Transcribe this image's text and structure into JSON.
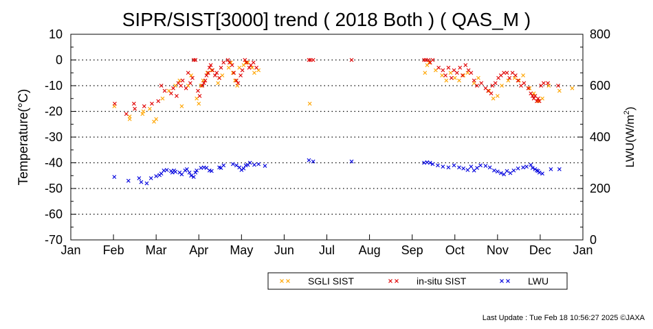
{
  "chart_data": {
    "type": "scatter",
    "title": "SIPR/SIST[3000] trend ( 2018 Both ) ( QAS_M )",
    "ylabel": "Temperature(°C)",
    "y2label_main": "LWU(W/m",
    "y2label_sup": "2",
    "y2label_end": ")",
    "ylim": [
      -70,
      10
    ],
    "y2lim": [
      0,
      800
    ],
    "xlim": [
      0,
      12
    ],
    "yticks": [
      10,
      0,
      -10,
      -20,
      -30,
      -40,
      -50,
      -60,
      -70
    ],
    "y2ticks": [
      800,
      600,
      400,
      200,
      0
    ],
    "xticks": [
      "Jan",
      "Feb",
      "Mar",
      "Apr",
      "May",
      "Jun",
      "Jul",
      "Aug",
      "Sep",
      "Oct",
      "Nov",
      "Dec",
      "Jan"
    ],
    "grid": "horizontal dotted",
    "legend_position": "bottom-right",
    "series": [
      {
        "name": "SGLI SIST",
        "color": "#ffa500",
        "axis": "left",
        "marker": "x",
        "x": [
          1.02,
          1.38,
          1.38,
          1.68,
          1.7,
          1.85,
          1.95,
          2.0,
          2.15,
          2.3,
          2.45,
          2.55,
          2.6,
          2.75,
          2.82,
          2.95,
          3.0,
          3.05,
          3.1,
          3.2,
          3.3,
          3.45,
          3.48,
          3.55,
          3.7,
          3.75,
          3.8,
          3.85,
          3.9,
          3.95,
          4.05,
          4.1,
          4.15,
          4.25,
          4.3,
          4.4,
          5.6,
          8.3,
          8.35,
          8.4,
          8.55,
          8.7,
          8.8,
          8.9,
          9.0,
          9.1,
          9.2,
          9.3,
          9.45,
          9.55,
          9.8,
          9.9,
          10.0,
          10.1,
          10.25,
          10.4,
          10.5,
          10.6,
          10.75,
          10.85,
          10.95,
          11.05,
          11.2,
          11.45,
          11.75
        ],
        "y": [
          -18,
          -23,
          -22,
          -21,
          -20,
          -19,
          -24,
          -23,
          -15,
          -12,
          -10,
          -8,
          -18,
          -10,
          -6,
          -15,
          -17,
          -10,
          -8,
          -5,
          -4,
          -9,
          -7,
          -6,
          -3,
          -1,
          -5,
          -8,
          -10,
          -3,
          -2,
          -1,
          -1,
          -3,
          -5,
          -4,
          -17,
          -5,
          -2,
          -1,
          -4,
          -6,
          -8,
          -5,
          -7,
          -8,
          -6,
          -5,
          -9,
          -7,
          -12,
          -15,
          -14,
          -10,
          -8,
          -7,
          -8,
          -6,
          -11,
          -13,
          -16,
          -15,
          -10,
          -12,
          -11
        ]
      },
      {
        "name": "in-situ SIST",
        "color": "#e00000",
        "axis": "left",
        "marker": "x",
        "x": [
          1.03,
          1.3,
          1.48,
          1.5,
          1.72,
          1.9,
          2.05,
          2.12,
          2.2,
          2.35,
          2.4,
          2.48,
          2.52,
          2.58,
          2.62,
          2.7,
          2.75,
          2.8,
          2.85,
          2.88,
          2.92,
          2.98,
          3.02,
          3.08,
          3.12,
          3.15,
          3.18,
          3.22,
          3.25,
          3.28,
          3.32,
          3.38,
          3.42,
          3.48,
          3.52,
          3.58,
          3.68,
          3.72,
          3.78,
          3.82,
          3.88,
          3.92,
          3.98,
          4.02,
          4.08,
          4.12,
          4.18,
          4.22,
          4.28,
          4.35,
          5.58,
          5.62,
          5.68,
          6.58,
          8.28,
          8.32,
          8.38,
          8.42,
          8.48,
          8.62,
          8.72,
          8.78,
          8.85,
          8.92,
          8.98,
          9.05,
          9.12,
          9.18,
          9.25,
          9.32,
          9.38,
          9.45,
          9.52,
          9.62,
          9.72,
          9.78,
          9.85,
          9.88,
          9.95,
          10.02,
          10.08,
          10.15,
          10.22,
          10.28,
          10.35,
          10.42,
          10.48,
          10.55,
          10.62,
          10.72,
          10.78,
          10.82,
          10.85,
          10.88,
          10.92,
          10.95,
          10.98,
          11.02,
          11.08,
          11.18,
          11.42
        ],
        "y": [
          -17,
          -21,
          -17,
          -19,
          -18,
          -17,
          -16,
          -10,
          -12,
          -13,
          -11,
          -14,
          -9,
          -10,
          -8,
          -11,
          -5,
          -9,
          -7,
          0,
          0,
          -12,
          -14,
          -10,
          -9,
          -8,
          -6,
          -5,
          -3,
          -2,
          -4,
          -6,
          -5,
          -7,
          -3,
          -1,
          0,
          -1,
          -2,
          -5,
          -8,
          -9,
          -6,
          -4,
          0,
          -1,
          -3,
          -2,
          -1,
          -3,
          0,
          0,
          0,
          0,
          0,
          0,
          0,
          -1,
          0,
          -3,
          -4,
          -6,
          -3,
          -7,
          -4,
          -5,
          -3,
          -6,
          -2,
          -4,
          -5,
          -8,
          -10,
          -9,
          -11,
          -12,
          -13,
          -10,
          -9,
          -7,
          -6,
          -5,
          -5,
          -7,
          -5,
          -6,
          -8,
          -10,
          -9,
          -11,
          -13,
          -14,
          -15,
          -14,
          -16,
          -15,
          -16,
          -10,
          -9,
          -9,
          -10
        ]
      },
      {
        "name": "LWU",
        "color": "#0000dd",
        "axis": "right",
        "marker": "x",
        "x": [
          1.02,
          1.35,
          1.6,
          1.65,
          1.78,
          1.88,
          2.0,
          2.08,
          2.12,
          2.18,
          2.25,
          2.35,
          2.38,
          2.42,
          2.45,
          2.55,
          2.6,
          2.68,
          2.72,
          2.78,
          2.82,
          2.88,
          2.92,
          2.95,
          3.05,
          3.12,
          3.18,
          3.25,
          3.3,
          3.48,
          3.52,
          3.58,
          3.8,
          3.88,
          3.95,
          4.0,
          4.05,
          4.1,
          4.15,
          4.2,
          4.3,
          4.4,
          4.55,
          5.58,
          5.68,
          6.58,
          8.28,
          8.35,
          8.42,
          8.48,
          8.6,
          8.72,
          8.85,
          8.98,
          9.1,
          9.2,
          9.3,
          9.38,
          9.45,
          9.52,
          9.6,
          9.72,
          9.82,
          9.92,
          10.0,
          10.08,
          10.15,
          10.22,
          10.3,
          10.38,
          10.48,
          10.6,
          10.68,
          10.78,
          10.82,
          10.88,
          10.92,
          10.95,
          10.98,
          11.05,
          11.25,
          11.45
        ],
        "y": [
          245,
          230,
          240,
          225,
          220,
          240,
          248,
          252,
          258,
          270,
          272,
          268,
          262,
          270,
          265,
          262,
          255,
          270,
          275,
          262,
          250,
          245,
          262,
          270,
          280,
          282,
          280,
          270,
          268,
          282,
          280,
          290,
          295,
          290,
          282,
          272,
          278,
          290,
          292,
          300,
          292,
          295,
          288,
          310,
          305,
          305,
          300,
          302,
          300,
          295,
          290,
          285,
          282,
          290,
          282,
          278,
          272,
          285,
          270,
          280,
          290,
          288,
          282,
          270,
          266,
          260,
          255,
          268,
          260,
          270,
          278,
          282,
          285,
          292,
          280,
          275,
          270,
          268,
          262,
          258,
          275,
          275
        ]
      }
    ]
  },
  "footer": {
    "last_update": "Last Update : Tue Feb 18 10:56:27 2025  ©JAXA"
  }
}
